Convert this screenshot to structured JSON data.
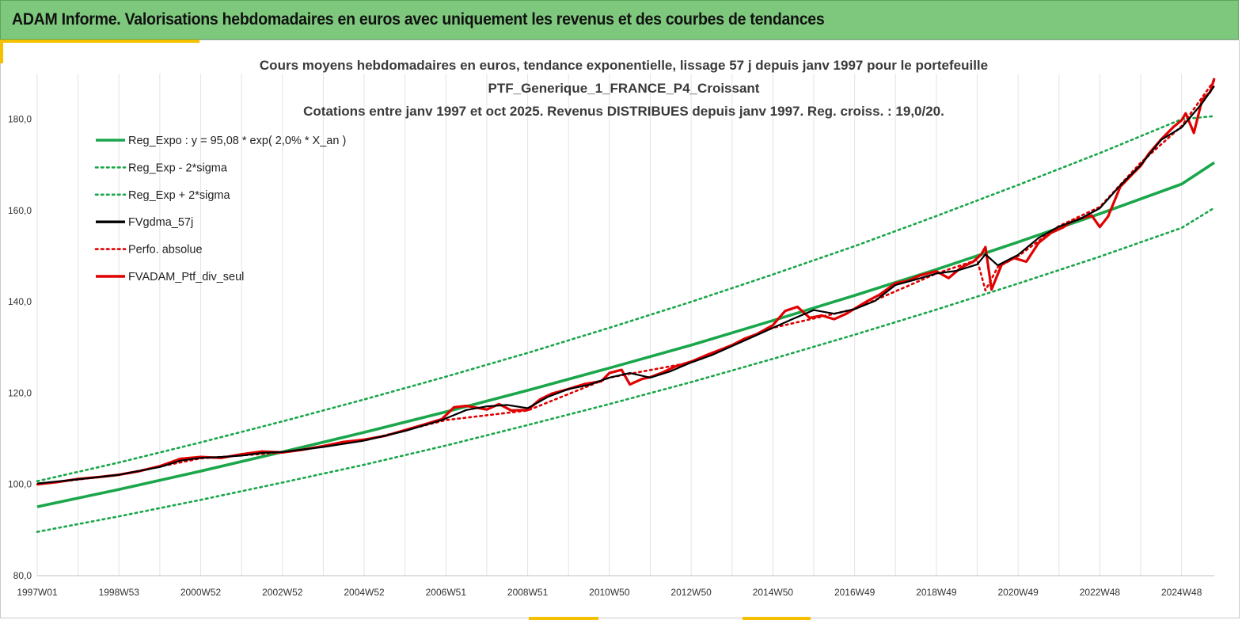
{
  "header": {
    "title": "ADAM Informe. Valorisations hebdomadaires en euros avec uniquement les revenus et des courbes de tendances"
  },
  "colors": {
    "header_bg": "#7dc87d",
    "accent": "#f5c000",
    "regression": "#1aa64a",
    "smoothed": "#000000",
    "performance": "#e00000"
  },
  "chart_data": {
    "type": "line",
    "title": [
      "Cours moyens hebdomadaires  en euros, tendance exponentielle, lissage 57 j depuis janv 1997 pour le portefeuille",
      "PTF_Generique_1_FRANCE_P4_Croissant",
      "Cotations  entre janv 1997 et oct 2025. Revenus DISTRIBUES depuis janv 1997. Reg. croiss. : 19,0/20."
    ],
    "xlabel": "",
    "ylabel": "",
    "x_range": [
      1997.0,
      2025.8
    ],
    "ylim": [
      80,
      190
    ],
    "grid": "vertical",
    "legend_position": "top-left",
    "x_ticks": [
      {
        "label": "1997W01",
        "x": 1997.0
      },
      {
        "label": "1998W53",
        "x": 1999.0
      },
      {
        "label": "2000W52",
        "x": 2001.0
      },
      {
        "label": "2002W52",
        "x": 2003.0
      },
      {
        "label": "2004W52",
        "x": 2005.0
      },
      {
        "label": "2006W51",
        "x": 2007.0
      },
      {
        "label": "2008W51",
        "x": 2009.0
      },
      {
        "label": "2010W50",
        "x": 2011.0
      },
      {
        "label": "2012W50",
        "x": 2013.0
      },
      {
        "label": "2014W50",
        "x": 2015.0
      },
      {
        "label": "2016W49",
        "x": 2017.0
      },
      {
        "label": "2018W49",
        "x": 2019.0
      },
      {
        "label": "2020W49",
        "x": 2021.0
      },
      {
        "label": "2022W48",
        "x": 2023.0
      },
      {
        "label": "2024W48",
        "x": 2025.0
      }
    ],
    "y_ticks": [
      {
        "label": "80,0",
        "y": 80
      },
      {
        "label": "100,0",
        "y": 100
      },
      {
        "label": "120,0",
        "y": 120
      },
      {
        "label": "140,0",
        "y": 140
      },
      {
        "label": "160,0",
        "y": 160
      },
      {
        "label": "180,0",
        "y": 180
      }
    ],
    "series": [
      {
        "name": "Reg_Expo : y = 95,08 * exp( 2,0% *  X_an )",
        "style": "solid",
        "color": "#1aa64a",
        "x": [
          1997.0,
          1999.0,
          2001.0,
          2003.0,
          2005.0,
          2007.0,
          2009.0,
          2011.0,
          2013.0,
          2015.0,
          2017.0,
          2019.0,
          2021.0,
          2023.0,
          2025.0,
          2025.8
        ],
        "y": [
          95.1,
          98.9,
          102.9,
          107.1,
          111.4,
          115.9,
          120.6,
          125.5,
          130.5,
          135.9,
          141.4,
          147.1,
          153.1,
          159.3,
          165.8,
          170.5
        ]
      },
      {
        "name": "Reg_Exp - 2*sigma",
        "style": "dotted",
        "color": "#1aa64a",
        "x": [
          1997.0,
          1999.0,
          2001.0,
          2003.0,
          2005.0,
          2007.0,
          2009.0,
          2011.0,
          2013.0,
          2015.0,
          2017.0,
          2019.0,
          2021.0,
          2023.0,
          2025.0,
          2025.8
        ],
        "y": [
          89.6,
          93.0,
          96.6,
          100.4,
          104.3,
          108.5,
          113.0,
          117.6,
          122.4,
          127.5,
          132.8,
          138.3,
          144.0,
          149.9,
          156.2,
          160.6
        ]
      },
      {
        "name": "Reg_Exp + 2*sigma",
        "style": "dotted",
        "color": "#1aa64a",
        "x": [
          1997.0,
          1999.0,
          2001.0,
          2003.0,
          2005.0,
          2007.0,
          2009.0,
          2011.0,
          2013.0,
          2015.0,
          2017.0,
          2019.0,
          2021.0,
          2023.0,
          2025.0,
          2025.8
        ],
        "y": [
          100.7,
          104.8,
          109.2,
          113.8,
          118.6,
          123.6,
          128.8,
          134.3,
          140.0,
          146.0,
          152.2,
          158.8,
          165.6,
          172.6,
          180.0,
          180.7
        ]
      },
      {
        "name": "FVgdma_57j",
        "style": "solid",
        "color": "#000000",
        "x": [
          1997.0,
          1998.0,
          1999.0,
          2000.0,
          2000.5,
          2001.0,
          2001.5,
          2002.0,
          2002.5,
          2003.0,
          2004.0,
          2005.0,
          2006.0,
          2006.9,
          2007.5,
          2008.0,
          2008.5,
          2009.0,
          2009.5,
          2010.0,
          2010.5,
          2011.0,
          2011.5,
          2012.0,
          2012.5,
          2013.0,
          2013.5,
          2014.0,
          2014.5,
          2015.0,
          2015.5,
          2016.0,
          2016.5,
          2017.0,
          2017.5,
          2018.0,
          2018.5,
          2019.0,
          2019.5,
          2020.0,
          2020.2,
          2020.5,
          2021.0,
          2021.5,
          2022.0,
          2022.5,
          2023.0,
          2023.5,
          2024.0,
          2024.5,
          2025.0,
          2025.5,
          2025.8
        ],
        "y": [
          100.2,
          101.1,
          102.1,
          103.8,
          105.2,
          105.8,
          106.0,
          106.3,
          106.9,
          107.1,
          108.2,
          109.6,
          111.7,
          114.1,
          116.3,
          117.1,
          117.4,
          116.7,
          119.2,
          120.9,
          121.8,
          123.4,
          124.4,
          123.4,
          124.8,
          126.7,
          128.3,
          130.3,
          132.3,
          134.3,
          136.3,
          138.2,
          137.4,
          138.4,
          140.2,
          143.7,
          144.9,
          146.2,
          146.8,
          148.2,
          150.4,
          148.0,
          150.3,
          154.0,
          156.5,
          158.1,
          160.5,
          165.5,
          170.0,
          175.5,
          178.2,
          183.5,
          187.3
        ]
      },
      {
        "name": "Perfo. absolue",
        "style": "dotted",
        "color": "#e00000",
        "x": [
          1997.0,
          1999.0,
          2001.0,
          2003.0,
          2005.0,
          2007.0,
          2009.0,
          2011.0,
          2013.0,
          2015.0,
          2017.0,
          2019.0,
          2020.0,
          2020.2,
          2020.5,
          2021.0,
          2022.0,
          2023.0,
          2024.0,
          2025.0,
          2025.8
        ],
        "y": [
          100.0,
          102.1,
          105.7,
          107.0,
          109.6,
          114.1,
          116.2,
          123.4,
          126.7,
          134.3,
          138.4,
          146.2,
          149.2,
          142.5,
          147.6,
          150.0,
          156.6,
          160.8,
          170.5,
          178.5,
          188.5
        ]
      },
      {
        "name": "FVADAM_Ptf_div_seul",
        "style": "solid",
        "color": "#e00000",
        "x": [
          1997.0,
          1997.5,
          1998.0,
          1998.5,
          1999.0,
          1999.5,
          2000.0,
          2000.5,
          2001.0,
          2001.5,
          2002.0,
          2002.5,
          2003.0,
          2003.5,
          2004.0,
          2004.5,
          2005.0,
          2005.5,
          2006.0,
          2006.5,
          2006.9,
          2007.2,
          2007.5,
          2008.0,
          2008.3,
          2008.6,
          2009.0,
          2009.3,
          2009.6,
          2010.0,
          2010.4,
          2010.8,
          2011.0,
          2011.3,
          2011.5,
          2011.8,
          2012.0,
          2012.3,
          2012.6,
          2013.0,
          2013.4,
          2013.8,
          2014.0,
          2014.3,
          2014.6,
          2015.0,
          2015.3,
          2015.6,
          2015.9,
          2016.2,
          2016.5,
          2016.8,
          2017.0,
          2017.3,
          2017.6,
          2018.0,
          2018.3,
          2018.6,
          2019.0,
          2019.3,
          2019.6,
          2019.9,
          2020.1,
          2020.2,
          2020.35,
          2020.6,
          2020.9,
          2021.2,
          2021.5,
          2021.8,
          2022.1,
          2022.3,
          2022.5,
          2022.8,
          2023.0,
          2023.2,
          2023.5,
          2023.8,
          2024.0,
          2024.2,
          2024.5,
          2024.8,
          2025.0,
          2025.1,
          2025.3,
          2025.5,
          2025.7,
          2025.8
        ],
        "y": [
          100.0,
          100.5,
          101.2,
          101.6,
          102.1,
          102.9,
          104.0,
          105.6,
          106.0,
          105.8,
          106.6,
          107.2,
          107.0,
          107.6,
          108.4,
          109.3,
          109.8,
          110.6,
          111.9,
          113.2,
          114.3,
          116.9,
          117.2,
          116.4,
          117.6,
          116.2,
          116.3,
          118.6,
          119.9,
          120.9,
          122.0,
          122.6,
          124.4,
          125.1,
          121.9,
          123.1,
          123.5,
          124.5,
          125.8,
          126.9,
          128.4,
          129.8,
          130.5,
          131.9,
          132.9,
          134.9,
          138.0,
          138.9,
          136.5,
          137.0,
          136.2,
          137.4,
          138.5,
          140.1,
          141.5,
          144.1,
          144.6,
          145.8,
          146.7,
          145.2,
          147.5,
          148.8,
          150.4,
          152.0,
          142.7,
          148.2,
          149.6,
          148.8,
          152.9,
          155.1,
          156.3,
          157.5,
          158.2,
          158.9,
          156.4,
          158.7,
          165.2,
          168.0,
          169.8,
          172.5,
          175.6,
          178.3,
          179.8,
          181.3,
          177.0,
          184.2,
          186.0,
          189.0
        ]
      }
    ]
  }
}
